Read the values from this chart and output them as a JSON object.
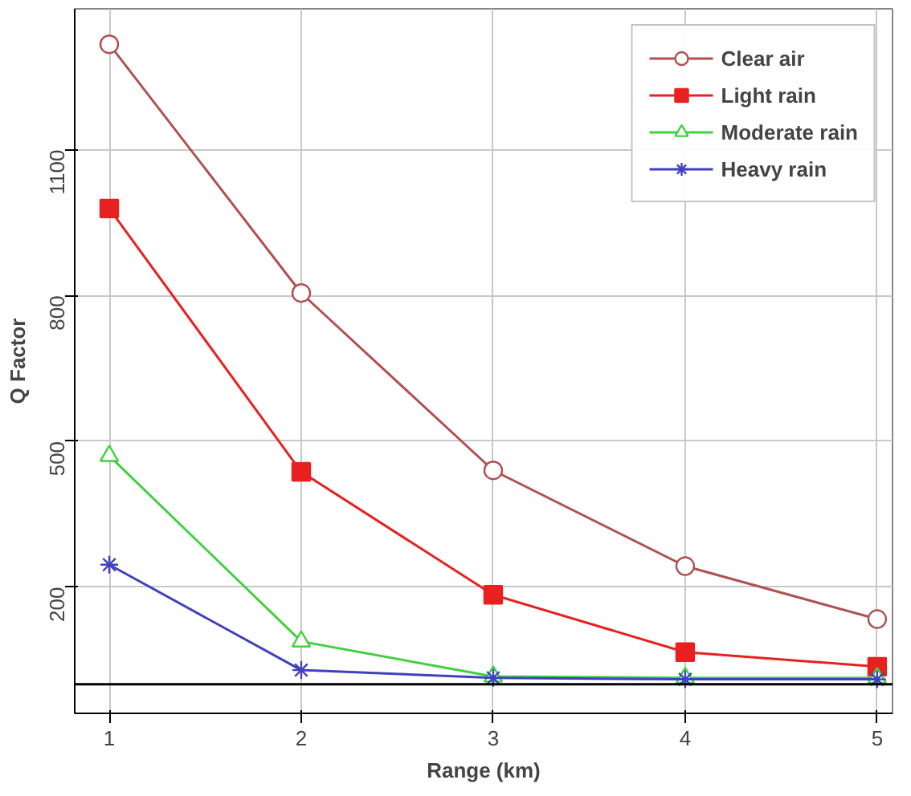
{
  "chart_data": {
    "type": "line",
    "xlabel": "Range (km)",
    "ylabel": "Q Factor",
    "x": [
      1,
      2,
      3,
      4,
      5
    ],
    "series": [
      {
        "name": "Clear air",
        "color": "#b05050",
        "marker": "circle",
        "values": [
          1317,
          805,
          440,
          243,
          134
        ]
      },
      {
        "name": "Light rain",
        "color": "#e82020",
        "marker": "square",
        "values": [
          979,
          437,
          184,
          66,
          36
        ]
      },
      {
        "name": "Moderate rain",
        "color": "#40d040",
        "marker": "triangle",
        "values": [
          470,
          88,
          16,
          13,
          13
        ]
      },
      {
        "name": "Heavy rain",
        "color": "#4040c0",
        "marker": "cross",
        "values": [
          246,
          29,
          13,
          10,
          10
        ]
      }
    ],
    "xlim": [
      0.82,
      5.08
    ],
    "ylim": [
      -60,
      1390
    ],
    "xticks": [
      1,
      2,
      3,
      4,
      5
    ],
    "yticks": [
      200,
      500,
      800,
      1100
    ],
    "ref_lines": [
      {
        "axis": "y",
        "value": 0,
        "color": "#000000"
      }
    ],
    "grid": true,
    "legend": "top right",
    "line_style": "solid"
  }
}
